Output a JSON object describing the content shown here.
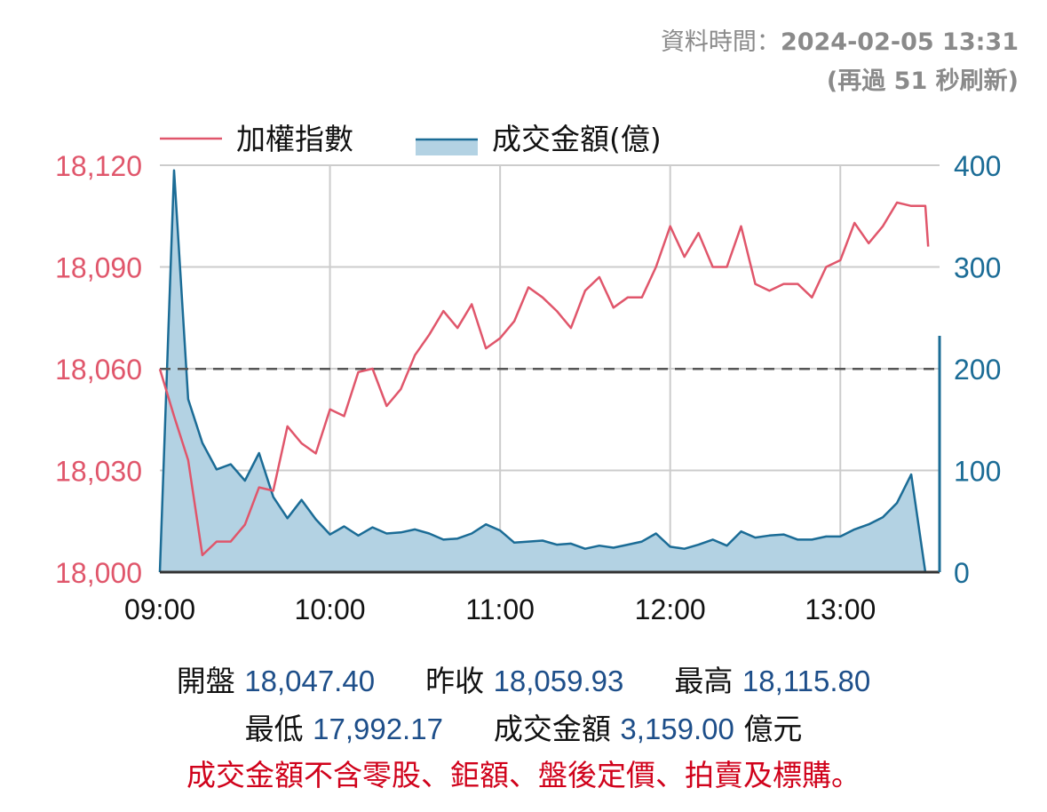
{
  "header": {
    "data_time_label": "資料時間：",
    "data_time_value": "2024-02-05 13:31",
    "refresh_prefix": "(再過 ",
    "refresh_seconds": "51",
    "refresh_suffix": " 秒刷新)"
  },
  "legend": {
    "index_label": "加權指數",
    "volume_label": "成交金額(億)"
  },
  "stats": {
    "open_label": "開盤",
    "open_value": "18,047.40",
    "prev_close_label": "昨收",
    "prev_close_value": "18,059.93",
    "high_label": "最高",
    "high_value": "18,115.80",
    "low_label": "最低",
    "low_value": "17,992.17",
    "volume_label": "成交金額",
    "volume_value": "3,159.00",
    "volume_unit": "億元"
  },
  "note": "成交金額不含零股、鉅額、盤後定價、拍賣及標購。",
  "colors": {
    "index_line": "#e0566b",
    "volume_line": "#1b6c96",
    "volume_fill": "#b3d2e3",
    "axis_left": "#e0566b",
    "axis_right": "#1b6c96",
    "grid": "#cccccc",
    "prev_close_line": "#555555"
  },
  "chart_data": {
    "type": "line",
    "x_ticks": [
      "09:00",
      "10:00",
      "11:00",
      "12:00",
      "13:00"
    ],
    "x_range": [
      "09:00",
      "13:35"
    ],
    "y_left": {
      "ticks": [
        "18,000",
        "18,030",
        "18,060",
        "18,090",
        "18,120"
      ],
      "range": [
        18000,
        18120
      ]
    },
    "y_right": {
      "ticks": [
        "0",
        "100",
        "200",
        "300",
        "400"
      ],
      "range": [
        0,
        400
      ]
    },
    "reference_line": {
      "value": 18059.93,
      "style": "dashed"
    },
    "grid": true,
    "legend_position": "top",
    "series": [
      {
        "name": "加權指數",
        "axis": "left",
        "kind": "line",
        "x": [
          "09:00",
          "09:05",
          "09:10",
          "09:15",
          "09:20",
          "09:25",
          "09:30",
          "09:35",
          "09:40",
          "09:45",
          "09:50",
          "09:55",
          "10:00",
          "10:05",
          "10:10",
          "10:15",
          "10:20",
          "10:25",
          "10:30",
          "10:35",
          "10:40",
          "10:45",
          "10:50",
          "10:55",
          "11:00",
          "11:05",
          "11:10",
          "11:15",
          "11:20",
          "11:25",
          "11:30",
          "11:35",
          "11:40",
          "11:45",
          "11:50",
          "11:55",
          "12:00",
          "12:05",
          "12:10",
          "12:15",
          "12:20",
          "12:25",
          "12:30",
          "12:35",
          "12:40",
          "12:45",
          "12:50",
          "12:55",
          "13:00",
          "13:05",
          "13:10",
          "13:15",
          "13:20",
          "13:25",
          "13:30",
          "13:31"
        ],
        "values": [
          18059.9,
          18046,
          18033,
          18005,
          18009,
          18009,
          18014,
          18025,
          18024,
          18043,
          18038,
          18035,
          18048,
          18046,
          18059,
          18060,
          18049,
          18054,
          18064,
          18070,
          18077,
          18072,
          18079,
          18066,
          18069,
          18074,
          18084,
          18081,
          18077,
          18072,
          18083,
          18087,
          18078,
          18081,
          18081,
          18090,
          18102,
          18093,
          18100,
          18090,
          18090,
          18102,
          18085,
          18083,
          18085,
          18085,
          18081,
          18090,
          18092,
          18103,
          18097,
          18102,
          18109,
          18108,
          18108,
          18096
        ]
      },
      {
        "name": "成交金額(億)",
        "axis": "right",
        "kind": "area",
        "x": [
          "09:00",
          "09:05",
          "09:10",
          "09:15",
          "09:20",
          "09:25",
          "09:30",
          "09:35",
          "09:40",
          "09:45",
          "09:50",
          "09:55",
          "10:00",
          "10:05",
          "10:10",
          "10:15",
          "10:20",
          "10:25",
          "10:30",
          "10:35",
          "10:40",
          "10:45",
          "10:50",
          "10:55",
          "11:00",
          "11:05",
          "11:10",
          "11:15",
          "11:20",
          "11:25",
          "11:30",
          "11:35",
          "11:40",
          "11:45",
          "11:50",
          "11:55",
          "12:00",
          "12:05",
          "12:10",
          "12:15",
          "12:20",
          "12:25",
          "12:30",
          "12:35",
          "12:40",
          "12:45",
          "12:50",
          "12:55",
          "13:00",
          "13:05",
          "13:10",
          "13:15",
          "13:20",
          "13:25",
          "13:30",
          "13:31"
        ],
        "values": [
          0,
          395,
          170,
          127,
          101,
          106,
          90,
          117,
          74,
          53,
          71,
          52,
          37,
          45,
          36,
          44,
          38,
          39,
          42,
          38,
          32,
          33,
          38,
          47,
          41,
          29,
          30,
          31,
          27,
          28,
          23,
          26,
          24,
          27,
          30,
          38,
          25,
          23,
          27,
          32,
          26,
          40,
          34,
          36,
          37,
          32,
          32,
          35,
          35,
          42,
          47,
          54,
          68,
          96,
          0,
          0
        ]
      }
    ]
  }
}
